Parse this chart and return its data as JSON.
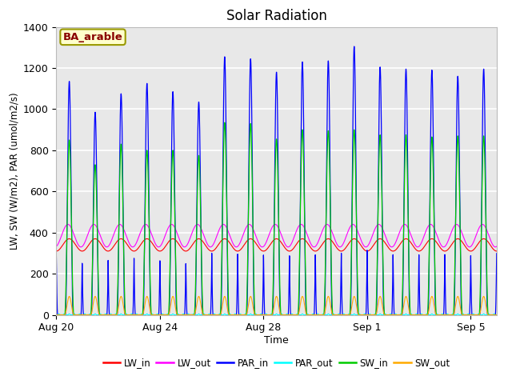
{
  "title": "Solar Radiation",
  "xlabel": "Time",
  "ylabel": "LW, SW (W/m2), PAR (umol/m2/s)",
  "ylim": [
    0,
    1400
  ],
  "bg_color": "#e8e8e8",
  "site_label": "BA_arable",
  "site_label_bg": "#ffffcc",
  "site_label_border": "#999900",
  "site_label_text_color": "#880000",
  "legend_labels": [
    "LW_in",
    "LW_out",
    "PAR_in",
    "PAR_out",
    "SW_in",
    "SW_out"
  ],
  "legend_colors": [
    "#ff0000",
    "#ff00ff",
    "#0000ff",
    "#00ffff",
    "#00cc00",
    "#ffaa00"
  ],
  "n_days": 17,
  "par_in_peaks": [
    1135,
    985,
    1075,
    1125,
    1085,
    1035,
    1255,
    1245,
    1180,
    1230,
    1235,
    1305,
    1205,
    1195,
    1190,
    1160,
    1195
  ],
  "sw_in_peaks": [
    850,
    730,
    830,
    800,
    800,
    775,
    935,
    930,
    855,
    900,
    895,
    900,
    875,
    875,
    865,
    870,
    870
  ],
  "sw_out_peaks": [
    90,
    90,
    90,
    90,
    90,
    90,
    90,
    90,
    90,
    90,
    90,
    90,
    90,
    90,
    90,
    90,
    90
  ],
  "lw_in_base": 340,
  "lw_in_amp": 30,
  "lw_out_base": 385,
  "lw_out_amp": 55,
  "xtick_positions": [
    0,
    4,
    8,
    12,
    16
  ],
  "xtick_labels": [
    "Aug 20",
    "Aug 24",
    "Aug 28",
    "Sep 1",
    "Sep 5"
  ],
  "ytick_positions": [
    0,
    200,
    400,
    600,
    800,
    1000,
    1200,
    1400
  ],
  "grid_color": "#ffffff",
  "pts_per_day": 288
}
